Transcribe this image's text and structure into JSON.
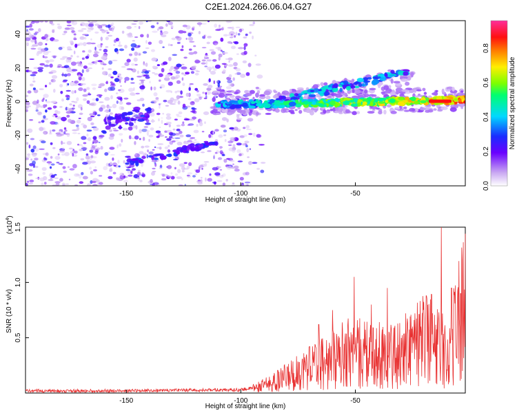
{
  "title": "C2E1.2024.266.06.04.G27",
  "chart_data": [
    {
      "type": "heatmap",
      "title": "C2E1.2024.266.06.04.G27",
      "xlabel": "Height of straight line (km)",
      "ylabel": "Frequency (Hz)",
      "xlim": [
        -194,
        -2
      ],
      "ylim": [
        -50,
        48
      ],
      "xticks": [
        -150,
        -100,
        -50
      ],
      "yticks": [
        40,
        20,
        0,
        -20,
        -40
      ],
      "xtick_labels": [
        "-150",
        "-100",
        "-50"
      ],
      "ytick_labels": [
        "40",
        "20",
        "0",
        "-20",
        "-40"
      ],
      "colorbar": {
        "label": "Normalized spectral amplitude",
        "range": [
          0.0,
          0.96
        ],
        "ticks": [
          0.0,
          0.2,
          0.4,
          0.6,
          0.8
        ],
        "tick_labels": [
          "0.0",
          "0.2",
          "0.4",
          "0.6",
          "0.8"
        ]
      },
      "features": [
        {
          "name": "main-doppler-trace",
          "x_range": [
            -110,
            -2
          ],
          "freq_hz": [
            -2,
            1
          ],
          "peak_amplitude": 0.96,
          "peak_x": -12
        },
        {
          "name": "upper-streak",
          "x_range": [
            -85,
            -25
          ],
          "freq_hz": [
            0,
            18
          ],
          "peak_amplitude": 0.5
        },
        {
          "name": "lower-diagonal-streak",
          "x_range": [
            -150,
            -110
          ],
          "freq_hz": [
            -37,
            -24
          ],
          "peak_amplitude": 0.35
        },
        {
          "name": "left-cluster",
          "x_range": [
            -160,
            -140
          ],
          "freq_hz": [
            -15,
            -5
          ],
          "peak_amplitude": 0.3
        },
        {
          "name": "noise-field",
          "x_range": [
            -194,
            -95
          ],
          "freq_hz": [
            -50,
            48
          ],
          "typical_amplitude": 0.1
        }
      ]
    },
    {
      "type": "line",
      "xlabel": "Height of straight line (km)",
      "ylabel": "SNR (10 * v/v)",
      "scale_label": "(x10",
      "scale_exp": "4",
      "scale_close": ")",
      "xlim": [
        -194,
        -2
      ],
      "ylim": [
        0,
        1.5
      ],
      "xticks": [
        -150,
        -100,
        -50
      ],
      "yticks": [
        0.5,
        1.0,
        1.5
      ],
      "xtick_labels": [
        "-150",
        "-100",
        "-50"
      ],
      "ytick_labels": [
        "0.5",
        "1.0",
        "1.5"
      ],
      "color": "#e83030",
      "series_profile": [
        {
          "x": -194,
          "y": 0.02
        },
        {
          "x": -150,
          "y": 0.02
        },
        {
          "x": -100,
          "y": 0.03
        },
        {
          "x": -93,
          "y": 0.05
        },
        {
          "x": -85,
          "y": 0.1
        },
        {
          "x": -78,
          "y": 0.16
        },
        {
          "x": -70,
          "y": 0.24
        },
        {
          "x": -60,
          "y": 0.3
        },
        {
          "x": -52,
          "y": 0.38
        },
        {
          "x": -45,
          "y": 0.35
        },
        {
          "x": -38,
          "y": 0.34
        },
        {
          "x": -30,
          "y": 0.35
        },
        {
          "x": -22,
          "y": 0.45
        },
        {
          "x": -15,
          "y": 0.52
        },
        {
          "x": -10,
          "y": 0.3
        },
        {
          "x": -6,
          "y": 0.65
        },
        {
          "x": -2,
          "y": 0.8
        }
      ],
      "peaks": [
        {
          "x": -12.5,
          "y": 1.5
        },
        {
          "x": -50.5,
          "y": 1.05
        },
        {
          "x": -36,
          "y": 0.95
        },
        {
          "x": -19,
          "y": 0.88
        },
        {
          "x": -8,
          "y": 0.95
        },
        {
          "x": -60,
          "y": 0.75
        },
        {
          "x": -43,
          "y": 0.8
        },
        {
          "x": -66,
          "y": 0.62
        },
        {
          "x": -28,
          "y": 0.72
        },
        {
          "x": -70,
          "y": 0.42
        },
        {
          "x": -4,
          "y": 0.9
        }
      ],
      "noise_seed": 7
    }
  ]
}
